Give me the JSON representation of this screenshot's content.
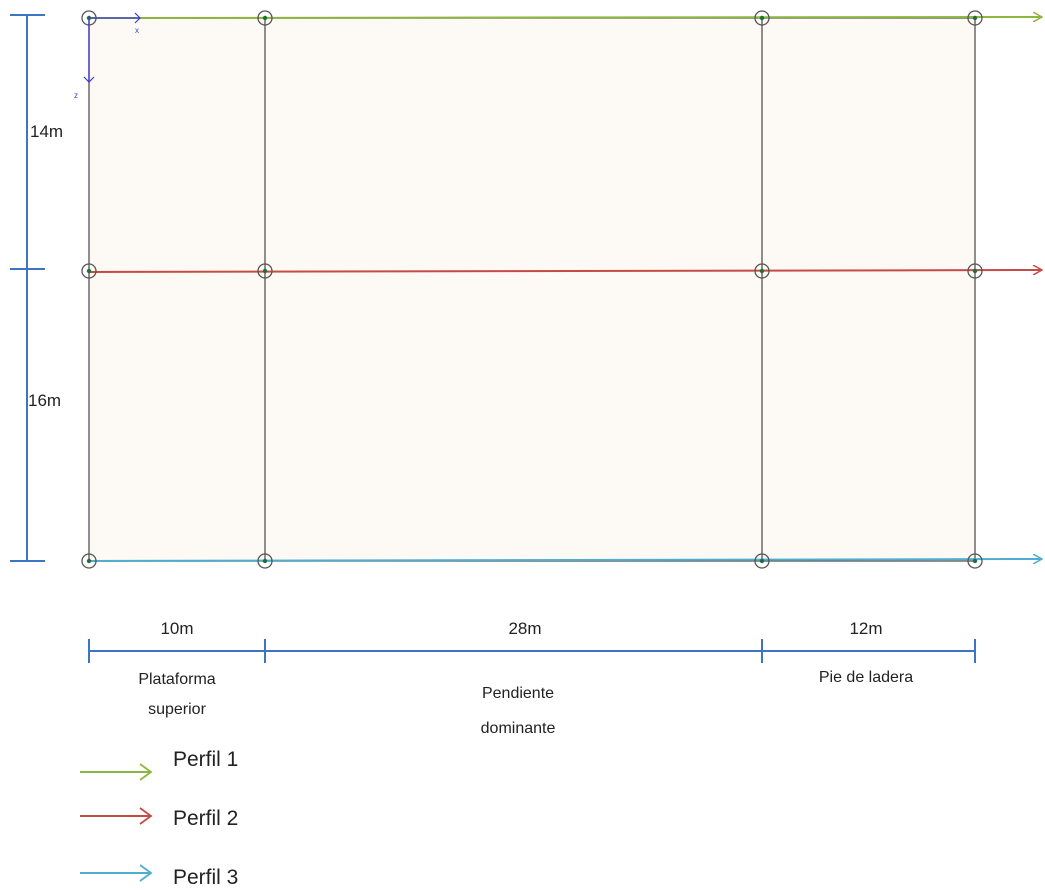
{
  "colors": {
    "profile1": "#8cb73e",
    "profile2": "#c64b45",
    "profile3": "#4eadd0",
    "dimension": "#3d74c4",
    "grid": "#6a6a6a",
    "fill": "#fdf9f4",
    "axis": "#3a3ae0"
  },
  "axes": {
    "x_label": "x",
    "z_label": "z"
  },
  "vertical_dims": [
    {
      "label": "14m"
    },
    {
      "label": "16m"
    }
  ],
  "horizontal_dims": [
    {
      "label": "10m"
    },
    {
      "label": "28m"
    },
    {
      "label": "12m"
    }
  ],
  "zones": [
    {
      "lines": [
        "Plataforma",
        "superior"
      ]
    },
    {
      "lines": [
        "Pendiente",
        "dominante"
      ]
    },
    {
      "lines": [
        "Pie de ladera"
      ]
    }
  ],
  "legend": [
    {
      "label": "Perfil 1",
      "color": "#8cb73e"
    },
    {
      "label": "Perfil 2",
      "color": "#c64b45"
    },
    {
      "label": "Perfil 3",
      "color": "#4eadd0"
    }
  ]
}
